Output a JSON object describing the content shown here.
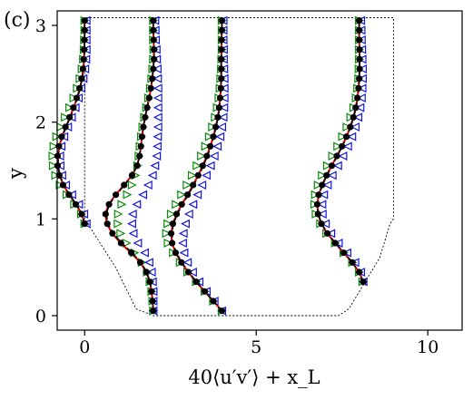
{
  "panel_label": "(c)",
  "chart_data": {
    "type": "line",
    "xlabel": "40⟨u′v′⟩ + x_L",
    "ylabel": "y",
    "xlim": [
      -0.8,
      11
    ],
    "ylim": [
      -0.15,
      3.15
    ],
    "xticks": [
      0,
      5,
      10
    ],
    "yticks": [
      0,
      1,
      2,
      3
    ],
    "grid": false,
    "legend": "none",
    "colors": {
      "geometry": "#000000",
      "line_red": "#e00000",
      "line_black_dashed": "#000000",
      "dots": "#000000",
      "tri_right": "#0a8a0a",
      "tri_left": "#1515e0"
    },
    "geometry": {
      "style": "dotted",
      "x": [
        0.0,
        0.0,
        0.9,
        1.5,
        2.0,
        7.4,
        7.7,
        8.6,
        8.9,
        9.0,
        9.0,
        0.0
      ],
      "y": [
        3.08,
        1.0,
        0.5,
        0.07,
        0.0,
        0.0,
        0.07,
        0.6,
        0.95,
        1.0,
        3.08,
        3.08
      ]
    },
    "profiles": [
      {
        "x_L": 0,
        "y": [
          0.95,
          1.05,
          1.15,
          1.25,
          1.35,
          1.45,
          1.55,
          1.65,
          1.75,
          1.85,
          1.95,
          2.05,
          2.15,
          2.25,
          2.35,
          2.45,
          2.55,
          2.65,
          2.75,
          2.85,
          2.95,
          3.05
        ],
        "line_red": [
          0.0,
          -0.08,
          -0.25,
          -0.45,
          -0.62,
          -0.73,
          -0.78,
          -0.78,
          -0.74,
          -0.66,
          -0.55,
          -0.43,
          -0.32,
          -0.22,
          -0.14,
          -0.08,
          -0.04,
          -0.02,
          -0.01,
          0.0,
          0.0,
          0.0
        ],
        "line_dashed": [
          0.0,
          -0.08,
          -0.25,
          -0.44,
          -0.61,
          -0.72,
          -0.77,
          -0.77,
          -0.73,
          -0.65,
          -0.54,
          -0.42,
          -0.31,
          -0.21,
          -0.13,
          -0.07,
          -0.03,
          -0.01,
          0.0,
          0.0,
          0.0,
          0.0
        ],
        "dots": [
          0.0,
          -0.09,
          -0.26,
          -0.46,
          -0.63,
          -0.74,
          -0.79,
          -0.79,
          -0.75,
          -0.67,
          -0.56,
          -0.44,
          -0.33,
          -0.23,
          -0.15,
          -0.09,
          -0.05,
          -0.03,
          -0.02,
          -0.01,
          0.0,
          0.0
        ],
        "tri_right": [
          0.0,
          -0.1,
          -0.3,
          -0.52,
          -0.72,
          -0.85,
          -0.92,
          -0.93,
          -0.9,
          -0.82,
          -0.7,
          -0.57,
          -0.44,
          -0.32,
          -0.22,
          -0.14,
          -0.08,
          -0.04,
          -0.02,
          -0.01,
          0.0,
          0.0
        ],
        "tri_left": [
          0.05,
          -0.02,
          -0.17,
          -0.37,
          -0.55,
          -0.66,
          -0.71,
          -0.72,
          -0.68,
          -0.6,
          -0.49,
          -0.38,
          -0.27,
          -0.18,
          -0.1,
          -0.04,
          0.01,
          0.04,
          0.05,
          0.05,
          0.05,
          0.05
        ]
      },
      {
        "x_L": 2,
        "y": [
          0.05,
          0.15,
          0.25,
          0.35,
          0.45,
          0.55,
          0.65,
          0.75,
          0.85,
          0.95,
          1.05,
          1.15,
          1.25,
          1.35,
          1.45,
          1.55,
          1.65,
          1.75,
          1.85,
          1.95,
          2.05,
          2.15,
          2.25,
          2.35,
          2.45,
          2.55,
          2.65,
          2.75,
          2.85,
          2.95,
          3.05
        ],
        "line_red": [
          0.0,
          -0.02,
          -0.05,
          -0.1,
          -0.2,
          -0.38,
          -0.65,
          -0.95,
          -1.2,
          -1.35,
          -1.4,
          -1.3,
          -1.1,
          -0.85,
          -0.62,
          -0.47,
          -0.4,
          -0.36,
          -0.33,
          -0.29,
          -0.24,
          -0.18,
          -0.12,
          -0.07,
          -0.03,
          0.0,
          0.02,
          0.02,
          0.01,
          0.0,
          0.0
        ],
        "line_dashed": [
          0.0,
          -0.02,
          -0.05,
          -0.1,
          -0.19,
          -0.36,
          -0.62,
          -0.92,
          -1.17,
          -1.32,
          -1.37,
          -1.28,
          -1.08,
          -0.84,
          -0.62,
          -0.47,
          -0.4,
          -0.36,
          -0.33,
          -0.29,
          -0.24,
          -0.18,
          -0.12,
          -0.07,
          -0.03,
          0.0,
          0.02,
          0.02,
          0.01,
          0.0,
          0.0
        ],
        "dots": [
          0.0,
          -0.02,
          -0.05,
          -0.1,
          -0.2,
          -0.38,
          -0.64,
          -0.94,
          -1.19,
          -1.34,
          -1.39,
          -1.29,
          -1.09,
          -0.85,
          -0.62,
          -0.47,
          -0.4,
          -0.36,
          -0.33,
          -0.29,
          -0.24,
          -0.18,
          -0.12,
          -0.07,
          -0.03,
          0.0,
          0.02,
          0.02,
          0.01,
          0.0,
          0.0
        ],
        "tri_right": [
          0.0,
          -0.02,
          -0.05,
          -0.1,
          -0.18,
          -0.33,
          -0.55,
          -0.78,
          -0.95,
          -1.03,
          -1.02,
          -0.92,
          -0.76,
          -0.62,
          -0.52,
          -0.46,
          -0.42,
          -0.39,
          -0.35,
          -0.31,
          -0.26,
          -0.2,
          -0.14,
          -0.09,
          -0.05,
          -0.02,
          0.0,
          0.01,
          0.0,
          0.0,
          0.0
        ],
        "tri_left": [
          0.0,
          0.0,
          0.0,
          -0.02,
          -0.05,
          -0.12,
          -0.25,
          -0.45,
          -0.58,
          -0.62,
          -0.6,
          -0.48,
          -0.3,
          -0.15,
          -0.02,
          0.05,
          0.1,
          0.12,
          0.13,
          0.14,
          0.14,
          0.14,
          0.14,
          0.14,
          0.13,
          0.12,
          0.1,
          0.09,
          0.07,
          0.06,
          0.05
        ]
      },
      {
        "x_L": 4,
        "y": [
          0.05,
          0.15,
          0.25,
          0.35,
          0.45,
          0.55,
          0.65,
          0.75,
          0.85,
          0.95,
          1.05,
          1.15,
          1.25,
          1.35,
          1.45,
          1.55,
          1.65,
          1.75,
          1.85,
          1.95,
          2.05,
          2.15,
          2.25,
          2.35,
          2.45,
          2.55,
          2.65,
          2.75,
          2.85,
          2.95,
          3.05
        ],
        "line_red": [
          0.0,
          -0.25,
          -0.5,
          -0.75,
          -0.98,
          -1.18,
          -1.35,
          -1.45,
          -1.48,
          -1.43,
          -1.32,
          -1.17,
          -1.0,
          -0.84,
          -0.69,
          -0.56,
          -0.44,
          -0.34,
          -0.25,
          -0.18,
          -0.12,
          -0.08,
          -0.05,
          -0.03,
          -0.02,
          -0.02,
          -0.02,
          -0.01,
          -0.01,
          0.0,
          0.0
        ],
        "line_dashed": [
          0.0,
          -0.25,
          -0.5,
          -0.74,
          -0.97,
          -1.17,
          -1.33,
          -1.43,
          -1.46,
          -1.41,
          -1.3,
          -1.15,
          -0.98,
          -0.82,
          -0.67,
          -0.54,
          -0.42,
          -0.32,
          -0.24,
          -0.17,
          -0.11,
          -0.07,
          -0.05,
          -0.03,
          -0.02,
          -0.02,
          -0.02,
          -0.01,
          -0.01,
          0.0,
          0.0
        ],
        "dots": [
          0.0,
          -0.25,
          -0.5,
          -0.75,
          -0.98,
          -1.18,
          -1.35,
          -1.45,
          -1.48,
          -1.43,
          -1.32,
          -1.17,
          -1.0,
          -0.84,
          -0.69,
          -0.56,
          -0.44,
          -0.34,
          -0.25,
          -0.18,
          -0.12,
          -0.08,
          -0.05,
          -0.03,
          -0.02,
          -0.02,
          -0.02,
          -0.01,
          -0.01,
          0.0,
          0.0
        ],
        "tri_right": [
          0.0,
          -0.25,
          -0.5,
          -0.75,
          -1.0,
          -1.22,
          -1.42,
          -1.57,
          -1.62,
          -1.58,
          -1.48,
          -1.34,
          -1.18,
          -1.02,
          -0.87,
          -0.73,
          -0.6,
          -0.48,
          -0.37,
          -0.28,
          -0.2,
          -0.14,
          -0.09,
          -0.06,
          -0.04,
          -0.02,
          -0.01,
          0.0,
          0.0,
          0.0,
          0.0
        ],
        "tri_left": [
          0.0,
          -0.22,
          -0.45,
          -0.66,
          -0.85,
          -1.0,
          -1.1,
          -1.14,
          -1.12,
          -1.06,
          -0.96,
          -0.84,
          -0.71,
          -0.58,
          -0.45,
          -0.33,
          -0.22,
          -0.13,
          -0.05,
          0.0,
          0.04,
          0.06,
          0.07,
          0.07,
          0.07,
          0.06,
          0.05,
          0.05,
          0.04,
          0.04,
          0.04
        ]
      },
      {
        "x_L": 8,
        "y": [
          0.35,
          0.45,
          0.55,
          0.65,
          0.75,
          0.85,
          0.95,
          1.05,
          1.15,
          1.25,
          1.35,
          1.45,
          1.55,
          1.65,
          1.75,
          1.85,
          1.95,
          2.05,
          2.15,
          2.25,
          2.35,
          2.45,
          2.55,
          2.65,
          2.75,
          2.85,
          2.95,
          3.05
        ],
        "line_red": [
          0.12,
          0.0,
          -0.2,
          -0.45,
          -0.7,
          -0.93,
          -1.1,
          -1.2,
          -1.22,
          -1.18,
          -1.08,
          -0.95,
          -0.8,
          -0.65,
          -0.5,
          -0.37,
          -0.26,
          -0.17,
          -0.1,
          -0.05,
          -0.02,
          0.0,
          0.01,
          0.01,
          0.01,
          0.0,
          0.0,
          0.0
        ],
        "line_dashed": [
          0.12,
          0.0,
          -0.2,
          -0.44,
          -0.69,
          -0.92,
          -1.09,
          -1.19,
          -1.21,
          -1.17,
          -1.07,
          -0.94,
          -0.79,
          -0.64,
          -0.49,
          -0.36,
          -0.25,
          -0.16,
          -0.09,
          -0.04,
          -0.01,
          0.0,
          0.01,
          0.01,
          0.01,
          0.0,
          0.0,
          0.0
        ],
        "dots": [
          0.12,
          0.0,
          -0.2,
          -0.45,
          -0.7,
          -0.93,
          -1.1,
          -1.2,
          -1.22,
          -1.18,
          -1.08,
          -0.95,
          -0.8,
          -0.65,
          -0.5,
          -0.37,
          -0.26,
          -0.17,
          -0.1,
          -0.05,
          -0.02,
          0.0,
          0.01,
          0.01,
          0.01,
          0.0,
          0.0,
          0.0
        ],
        "tri_right": [
          0.1,
          0.0,
          -0.2,
          -0.45,
          -0.7,
          -0.95,
          -1.13,
          -1.26,
          -1.3,
          -1.28,
          -1.2,
          -1.08,
          -0.93,
          -0.78,
          -0.63,
          -0.49,
          -0.36,
          -0.25,
          -0.16,
          -0.09,
          -0.05,
          -0.02,
          -0.01,
          0.0,
          0.0,
          0.0,
          0.0,
          0.0
        ],
        "tri_left": [
          0.12,
          0.05,
          -0.12,
          -0.35,
          -0.6,
          -0.82,
          -0.98,
          -1.07,
          -1.08,
          -1.03,
          -0.92,
          -0.78,
          -0.62,
          -0.47,
          -0.33,
          -0.21,
          -0.11,
          -0.03,
          0.03,
          0.07,
          0.09,
          0.1,
          0.1,
          0.09,
          0.08,
          0.07,
          0.06,
          0.05
        ]
      }
    ]
  }
}
